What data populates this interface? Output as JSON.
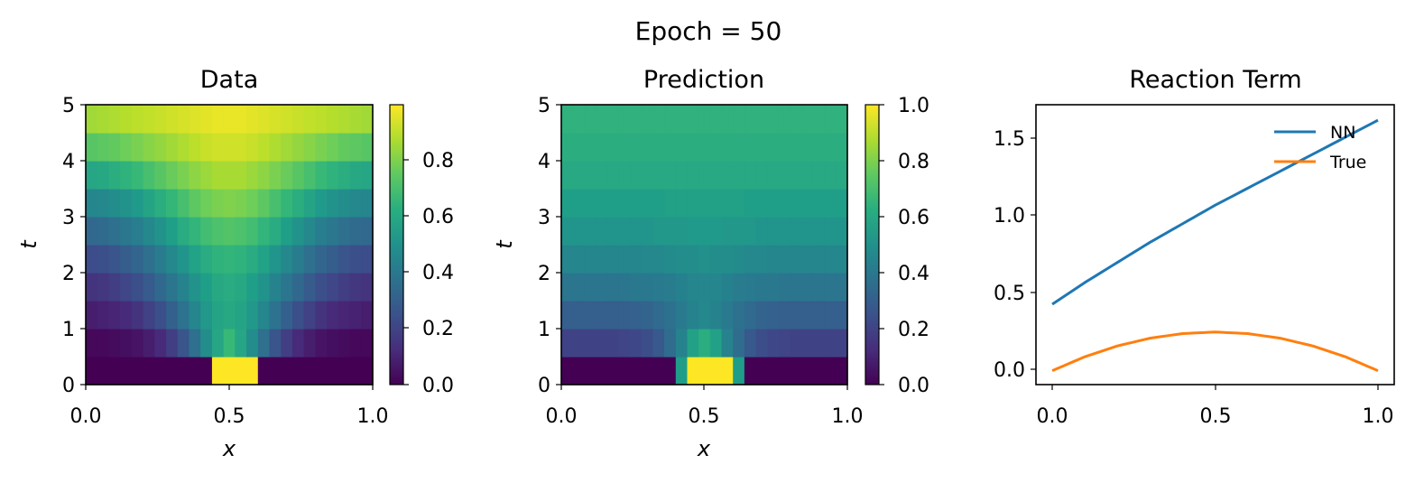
{
  "suptitle": "Epoch = 50",
  "panels": {
    "data": {
      "title": "Data",
      "xlabel": "x",
      "ylabel": "t",
      "xticks": [
        "0.0",
        "0.5",
        "1.0"
      ],
      "yticks": [
        "0",
        "1",
        "2",
        "3",
        "4",
        "5"
      ],
      "colorbar_ticks": [
        "0.0",
        "0.2",
        "0.4",
        "0.6",
        "0.8"
      ]
    },
    "prediction": {
      "title": "Prediction",
      "xlabel": "x",
      "ylabel": "t",
      "xticks": [
        "0.0",
        "0.5",
        "1.0"
      ],
      "yticks": [
        "0",
        "1",
        "2",
        "3",
        "4",
        "5"
      ],
      "colorbar_ticks": [
        "0.0",
        "0.2",
        "0.4",
        "0.6",
        "0.8",
        "1.0"
      ]
    },
    "reaction": {
      "title": "Reaction Term",
      "xticks": [
        "0.0",
        "0.5",
        "1.0"
      ],
      "yticks": [
        "0.0",
        "0.5",
        "1.0",
        "1.5"
      ]
    }
  },
  "colors": {
    "nn": "#1f77b4",
    "true": "#ff7f0e",
    "colormap": "viridis"
  },
  "chart_data": [
    {
      "type": "heatmap",
      "title": "Data",
      "xlabel": "x",
      "ylabel": "t",
      "xlim": [
        0,
        1
      ],
      "ylim": [
        0,
        5
      ],
      "clim": [
        0,
        0.98
      ],
      "colormap": "viridis",
      "grid": {
        "nx": 25,
        "nt": 10,
        "rows_t_ascending": [
          [
            0.0,
            0.0,
            0.0,
            0.0,
            0.0,
            0.0,
            0.0,
            0.0,
            0.0,
            0.0,
            0.0,
            1.0,
            1.0,
            1.0,
            1.0,
            0.0,
            0.0,
            0.0,
            0.0,
            0.0,
            0.0,
            0.0,
            0.0,
            0.0,
            0.0
          ],
          [
            0.02,
            0.02,
            0.03,
            0.04,
            0.05,
            0.08,
            0.12,
            0.18,
            0.26,
            0.36,
            0.48,
            0.58,
            0.66,
            0.58,
            0.48,
            0.36,
            0.26,
            0.18,
            0.12,
            0.08,
            0.05,
            0.04,
            0.03,
            0.02,
            0.02
          ],
          [
            0.08,
            0.09,
            0.1,
            0.12,
            0.15,
            0.19,
            0.24,
            0.3,
            0.37,
            0.45,
            0.52,
            0.57,
            0.59,
            0.57,
            0.52,
            0.45,
            0.37,
            0.3,
            0.24,
            0.19,
            0.15,
            0.12,
            0.1,
            0.09,
            0.08
          ],
          [
            0.15,
            0.16,
            0.18,
            0.21,
            0.24,
            0.28,
            0.33,
            0.38,
            0.44,
            0.5,
            0.55,
            0.59,
            0.6,
            0.59,
            0.55,
            0.5,
            0.44,
            0.38,
            0.33,
            0.28,
            0.24,
            0.21,
            0.18,
            0.16,
            0.15
          ],
          [
            0.23,
            0.24,
            0.26,
            0.29,
            0.32,
            0.36,
            0.41,
            0.46,
            0.51,
            0.56,
            0.6,
            0.63,
            0.64,
            0.63,
            0.6,
            0.56,
            0.51,
            0.46,
            0.41,
            0.36,
            0.32,
            0.29,
            0.26,
            0.24,
            0.23
          ],
          [
            0.33,
            0.34,
            0.36,
            0.39,
            0.42,
            0.46,
            0.5,
            0.55,
            0.6,
            0.64,
            0.68,
            0.7,
            0.71,
            0.7,
            0.68,
            0.64,
            0.6,
            0.55,
            0.5,
            0.46,
            0.42,
            0.39,
            0.36,
            0.34,
            0.33
          ],
          [
            0.45,
            0.46,
            0.48,
            0.5,
            0.53,
            0.57,
            0.61,
            0.65,
            0.69,
            0.73,
            0.76,
            0.78,
            0.79,
            0.78,
            0.76,
            0.73,
            0.69,
            0.65,
            0.61,
            0.57,
            0.53,
            0.5,
            0.48,
            0.46,
            0.45
          ],
          [
            0.58,
            0.59,
            0.61,
            0.63,
            0.66,
            0.69,
            0.72,
            0.75,
            0.78,
            0.81,
            0.83,
            0.85,
            0.85,
            0.85,
            0.83,
            0.81,
            0.78,
            0.75,
            0.72,
            0.69,
            0.66,
            0.63,
            0.61,
            0.59,
            0.58
          ],
          [
            0.72,
            0.73,
            0.74,
            0.76,
            0.78,
            0.8,
            0.82,
            0.84,
            0.86,
            0.88,
            0.9,
            0.91,
            0.91,
            0.91,
            0.9,
            0.88,
            0.86,
            0.84,
            0.82,
            0.8,
            0.78,
            0.76,
            0.74,
            0.73,
            0.72
          ],
          [
            0.84,
            0.85,
            0.86,
            0.87,
            0.88,
            0.89,
            0.9,
            0.91,
            0.92,
            0.93,
            0.94,
            0.95,
            0.95,
            0.95,
            0.94,
            0.93,
            0.92,
            0.91,
            0.9,
            0.89,
            0.88,
            0.87,
            0.86,
            0.85,
            0.84
          ]
        ]
      },
      "colorbar_ticks": [
        0.0,
        0.2,
        0.4,
        0.6,
        0.8
      ]
    },
    {
      "type": "heatmap",
      "title": "Prediction",
      "xlabel": "x",
      "ylabel": "t",
      "xlim": [
        0,
        1
      ],
      "ylim": [
        0,
        5
      ],
      "clim": [
        0,
        1
      ],
      "colormap": "viridis",
      "grid": {
        "nx": 25,
        "nt": 10,
        "rows_t_ascending": [
          [
            0.0,
            0.0,
            0.0,
            0.0,
            0.0,
            0.0,
            0.0,
            0.0,
            0.0,
            0.0,
            0.55,
            1.0,
            1.0,
            1.0,
            1.0,
            0.55,
            0.0,
            0.0,
            0.0,
            0.0,
            0.0,
            0.0,
            0.0,
            0.0,
            0.0
          ],
          [
            0.2,
            0.2,
            0.2,
            0.2,
            0.2,
            0.21,
            0.22,
            0.24,
            0.28,
            0.35,
            0.45,
            0.57,
            0.62,
            0.57,
            0.45,
            0.35,
            0.28,
            0.24,
            0.22,
            0.21,
            0.2,
            0.2,
            0.2,
            0.2,
            0.2
          ],
          [
            0.3,
            0.3,
            0.3,
            0.3,
            0.3,
            0.3,
            0.31,
            0.32,
            0.34,
            0.37,
            0.41,
            0.45,
            0.47,
            0.45,
            0.41,
            0.37,
            0.34,
            0.32,
            0.31,
            0.3,
            0.3,
            0.3,
            0.3,
            0.3,
            0.3
          ],
          [
            0.39,
            0.39,
            0.39,
            0.39,
            0.39,
            0.39,
            0.4,
            0.4,
            0.41,
            0.42,
            0.44,
            0.46,
            0.46,
            0.46,
            0.44,
            0.42,
            0.41,
            0.4,
            0.4,
            0.39,
            0.39,
            0.39,
            0.39,
            0.39,
            0.39
          ],
          [
            0.46,
            0.46,
            0.46,
            0.46,
            0.46,
            0.46,
            0.46,
            0.47,
            0.47,
            0.48,
            0.49,
            0.49,
            0.5,
            0.49,
            0.49,
            0.48,
            0.47,
            0.47,
            0.46,
            0.46,
            0.46,
            0.46,
            0.46,
            0.46,
            0.46
          ],
          [
            0.52,
            0.52,
            0.52,
            0.52,
            0.52,
            0.52,
            0.52,
            0.52,
            0.53,
            0.53,
            0.53,
            0.54,
            0.54,
            0.54,
            0.53,
            0.53,
            0.53,
            0.52,
            0.52,
            0.52,
            0.52,
            0.52,
            0.52,
            0.52,
            0.52
          ],
          [
            0.56,
            0.56,
            0.56,
            0.56,
            0.56,
            0.56,
            0.56,
            0.56,
            0.56,
            0.57,
            0.57,
            0.57,
            0.57,
            0.57,
            0.57,
            0.57,
            0.56,
            0.56,
            0.56,
            0.56,
            0.56,
            0.56,
            0.56,
            0.56,
            0.56
          ],
          [
            0.6,
            0.6,
            0.6,
            0.6,
            0.6,
            0.6,
            0.6,
            0.6,
            0.6,
            0.6,
            0.6,
            0.6,
            0.6,
            0.6,
            0.6,
            0.6,
            0.6,
            0.6,
            0.6,
            0.6,
            0.6,
            0.6,
            0.6,
            0.6,
            0.6
          ],
          [
            0.62,
            0.62,
            0.62,
            0.62,
            0.62,
            0.62,
            0.62,
            0.62,
            0.62,
            0.62,
            0.62,
            0.62,
            0.62,
            0.62,
            0.62,
            0.62,
            0.62,
            0.62,
            0.62,
            0.62,
            0.62,
            0.62,
            0.62,
            0.62,
            0.62
          ],
          [
            0.64,
            0.64,
            0.64,
            0.64,
            0.64,
            0.64,
            0.64,
            0.64,
            0.64,
            0.64,
            0.64,
            0.64,
            0.64,
            0.64,
            0.64,
            0.64,
            0.64,
            0.64,
            0.64,
            0.64,
            0.64,
            0.64,
            0.64,
            0.64,
            0.64
          ]
        ]
      },
      "colorbar_ticks": [
        0.0,
        0.2,
        0.4,
        0.6,
        0.8,
        1.0
      ]
    },
    {
      "type": "line",
      "title": "Reaction Term",
      "xlim": [
        -0.05,
        1.05
      ],
      "ylim": [
        -0.09,
        1.72
      ],
      "legend_position": "top-right",
      "series": [
        {
          "name": "NN",
          "color": "#1f77b4",
          "x": [
            0.0,
            0.1,
            0.2,
            0.3,
            0.4,
            0.5,
            0.6,
            0.7,
            0.8,
            0.9,
            1.0
          ],
          "y": [
            0.43,
            0.57,
            0.7,
            0.83,
            0.95,
            1.07,
            1.18,
            1.29,
            1.4,
            1.51,
            1.62
          ]
        },
        {
          "name": "True",
          "color": "#ff7f0e",
          "x": [
            0.0,
            0.1,
            0.2,
            0.3,
            0.4,
            0.5,
            0.6,
            0.7,
            0.8,
            0.9,
            1.0
          ],
          "y": [
            0.0,
            0.09,
            0.16,
            0.21,
            0.24,
            0.25,
            0.24,
            0.21,
            0.16,
            0.09,
            0.0
          ]
        }
      ]
    }
  ]
}
